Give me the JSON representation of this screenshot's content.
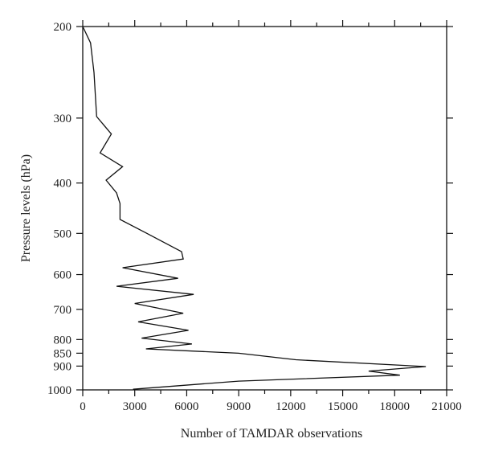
{
  "chart_data": {
    "type": "line",
    "title": "",
    "xlabel": "Number of TAMDAR observations",
    "ylabel": "Pressure levels (hPa)",
    "xlim": [
      0,
      21000
    ],
    "ylim": [
      1000,
      200
    ],
    "y_scale": "log-pressure",
    "x_ticks": [
      0,
      3000,
      6000,
      9000,
      12000,
      15000,
      18000,
      21000
    ],
    "x_minor_step": 1500,
    "y_ticks": [
      200,
      300,
      400,
      500,
      600,
      700,
      800,
      850,
      900,
      1000
    ],
    "grid": false,
    "legend": "none",
    "line_color": "#111111",
    "series": [
      {
        "points": [
          [
            0,
            200
          ],
          [
            450,
            215
          ],
          [
            650,
            245
          ],
          [
            800,
            298
          ],
          [
            1650,
            322
          ],
          [
            1000,
            350
          ],
          [
            2300,
            372
          ],
          [
            1350,
            395
          ],
          [
            1950,
            418
          ],
          [
            2150,
            438
          ],
          [
            2150,
            470
          ],
          [
            3600,
            498
          ],
          [
            5700,
            542
          ],
          [
            5800,
            560
          ],
          [
            2300,
            582
          ],
          [
            5500,
            610
          ],
          [
            1950,
            632
          ],
          [
            6400,
            655
          ],
          [
            3000,
            682
          ],
          [
            5800,
            712
          ],
          [
            3200,
            740
          ],
          [
            6100,
            768
          ],
          [
            3400,
            795
          ],
          [
            6300,
            816
          ],
          [
            3650,
            834
          ],
          [
            9000,
            850
          ],
          [
            12300,
            875
          ],
          [
            19800,
            902
          ],
          [
            16500,
            920
          ],
          [
            18300,
            937
          ],
          [
            9000,
            962
          ],
          [
            2900,
            997
          ]
        ]
      }
    ]
  }
}
